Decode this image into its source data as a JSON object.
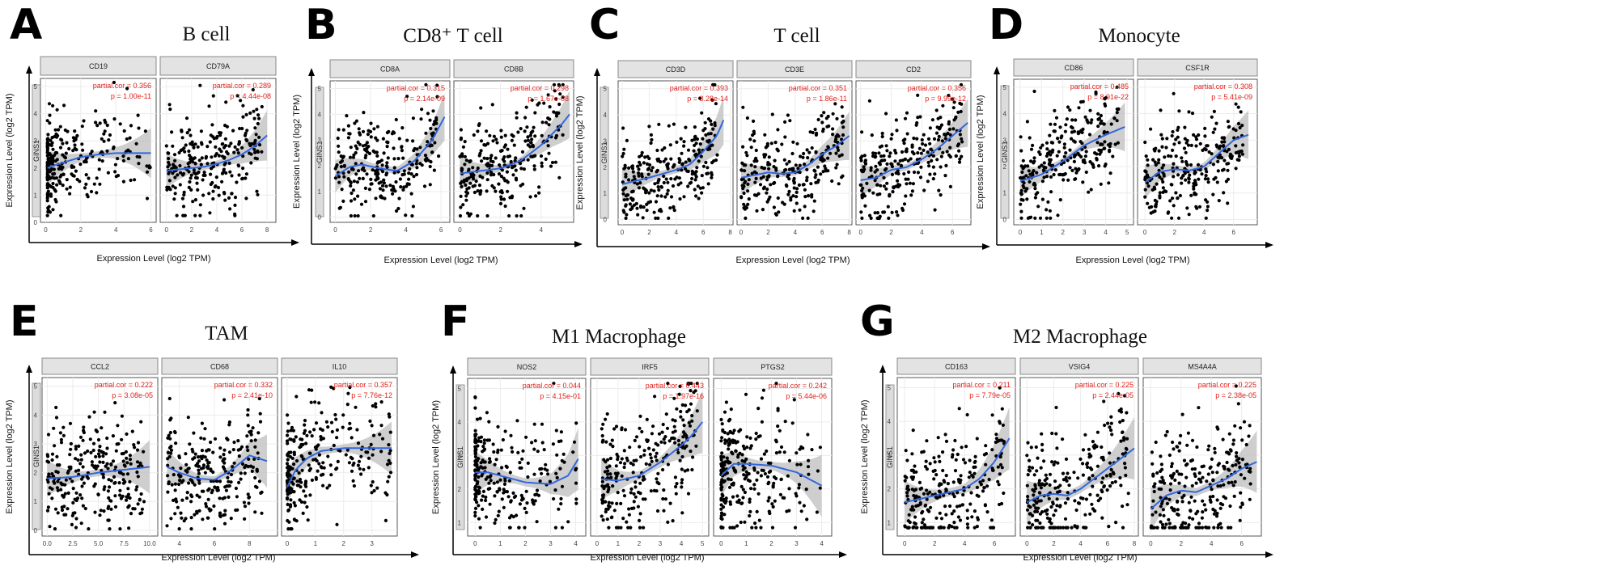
{
  "y_gene": "GINS1",
  "axis_label": "Expression Level (log2 TPM)",
  "colors": {
    "points": "#000000",
    "fit": "#3366dd",
    "band": "#bdbdbd",
    "stats": "#e0211b"
  },
  "chart_data": [
    {
      "type": "scatter",
      "label": "A",
      "title": "B cell",
      "y_ticks": [
        0,
        1,
        2,
        3,
        4,
        5
      ],
      "ylim": [
        0,
        5.3
      ],
      "panels": [
        {
          "gene": "CD19",
          "partial_cor": "partial.cor = 0.356",
          "p": "p = 1.00e-11",
          "xlim": [
            -0.3,
            6.3
          ],
          "x_ticks": [
            0,
            2,
            4,
            6
          ],
          "fit": [
            [
              0.1,
              2.0
            ],
            [
              0.5,
              2.1
            ],
            [
              1,
              2.2
            ],
            [
              2,
              2.4
            ],
            [
              3,
              2.5
            ],
            [
              4,
              2.55
            ],
            [
              5,
              2.55
            ],
            [
              6,
              2.55
            ]
          ]
        },
        {
          "gene": "CD79A",
          "partial_cor": "partial.cor = 0.289",
          "p": "p = 4.44e-08",
          "xlim": [
            -0.5,
            8.7
          ],
          "x_ticks": [
            0,
            2,
            4,
            6,
            8
          ],
          "fit": [
            [
              0,
              1.9
            ],
            [
              1,
              1.95
            ],
            [
              2,
              2.0
            ],
            [
              3,
              2.05
            ],
            [
              4,
              2.15
            ],
            [
              5,
              2.3
            ],
            [
              6,
              2.5
            ],
            [
              7,
              2.8
            ],
            [
              8,
              3.2
            ]
          ]
        }
      ]
    },
    {
      "type": "scatter",
      "label": "B",
      "title": "CD8⁺ T cell",
      "y_ticks": [
        0,
        1,
        2,
        3,
        4,
        5
      ],
      "ylim": [
        -0.2,
        5.3
      ],
      "panels": [
        {
          "gene": "CD8A",
          "partial_cor": "partial.cor = 0.315",
          "p": "p = 2.14e-09",
          "xlim": [
            -0.3,
            6.5
          ],
          "x_ticks": [
            0,
            2,
            4,
            6
          ],
          "fit": [
            [
              0,
              1.6
            ],
            [
              0.8,
              1.95
            ],
            [
              1.5,
              2.05
            ],
            [
              2.5,
              1.9
            ],
            [
              3.5,
              1.8
            ],
            [
              4.5,
              2.2
            ],
            [
              5.5,
              3.0
            ],
            [
              6.2,
              3.9
            ]
          ]
        },
        {
          "gene": "CD8B",
          "partial_cor": "partial.cor = 0.298",
          "p": "p = 1.67e-08",
          "xlim": [
            -0.3,
            5.6
          ],
          "x_ticks": [
            0,
            2,
            4
          ],
          "fit": [
            [
              0,
              1.7
            ],
            [
              1,
              1.8
            ],
            [
              2,
              1.9
            ],
            [
              3,
              2.2
            ],
            [
              4,
              2.8
            ],
            [
              5,
              3.6
            ],
            [
              5.4,
              4.0
            ]
          ]
        }
      ]
    },
    {
      "type": "scatter",
      "label": "C",
      "title": "T cell",
      "y_ticks": [
        0,
        1,
        2,
        3,
        4,
        5
      ],
      "ylim": [
        -0.2,
        5.3
      ],
      "panels": [
        {
          "gene": "CD3D",
          "partial_cor": "partial.cor = 0.393",
          "p": "p = 3.28e-14",
          "xlim": [
            -0.3,
            8.2
          ],
          "x_ticks": [
            0,
            2,
            4,
            6,
            8
          ],
          "fit": [
            [
              0,
              1.35
            ],
            [
              2,
              1.6
            ],
            [
              4,
              1.9
            ],
            [
              5,
              2.1
            ],
            [
              6,
              2.6
            ],
            [
              7,
              3.2
            ],
            [
              7.5,
              3.8
            ]
          ]
        },
        {
          "gene": "CD3E",
          "partial_cor": "partial.cor = 0.351",
          "p": "p = 1.86e-11",
          "xlim": [
            -0.3,
            8.2
          ],
          "x_ticks": [
            0,
            2,
            4,
            6,
            8
          ],
          "fit": [
            [
              0,
              1.6
            ],
            [
              1,
              1.7
            ],
            [
              2,
              1.8
            ],
            [
              3,
              1.75
            ],
            [
              4,
              1.8
            ],
            [
              5,
              2.1
            ],
            [
              6,
              2.5
            ],
            [
              7,
              2.8
            ],
            [
              8,
              3.2
            ]
          ]
        },
        {
          "gene": "CD2",
          "partial_cor": "partial.cor = 0.356",
          "p": "p = 9.99e-12",
          "xlim": [
            -0.3,
            7.2
          ],
          "x_ticks": [
            0,
            2,
            4,
            6
          ],
          "fit": [
            [
              0,
              1.5
            ],
            [
              1,
              1.6
            ],
            [
              2,
              1.9
            ],
            [
              3,
              2.0
            ],
            [
              4,
              2.3
            ],
            [
              5,
              2.7
            ],
            [
              6,
              3.2
            ],
            [
              7,
              3.7
            ]
          ]
        }
      ]
    },
    {
      "type": "scatter",
      "label": "D",
      "title": "Monocyte",
      "y_ticks": [
        0,
        1,
        2,
        3,
        4,
        5
      ],
      "ylim": [
        -0.2,
        5.3
      ],
      "panels": [
        {
          "gene": "CD86",
          "partial_cor": "partial.cor = 0.485",
          "p": "p = 8.91e-22",
          "xlim": [
            -0.3,
            5.3
          ],
          "x_ticks": [
            0,
            1,
            2,
            3,
            4,
            5
          ],
          "fit": [
            [
              0,
              1.45
            ],
            [
              1,
              1.7
            ],
            [
              2,
              2.2
            ],
            [
              3,
              2.8
            ],
            [
              4,
              3.2
            ],
            [
              4.9,
              3.5
            ]
          ]
        },
        {
          "gene": "CSF1R",
          "partial_cor": "partial.cor = 0.308",
          "p": "p = 5.41e-09",
          "xlim": [
            -0.5,
            7.6
          ],
          "x_ticks": [
            0,
            2,
            4,
            6
          ],
          "fit": [
            [
              0,
              1.4
            ],
            [
              1,
              1.8
            ],
            [
              2,
              1.9
            ],
            [
              3,
              1.85
            ],
            [
              4,
              2.0
            ],
            [
              5,
              2.5
            ],
            [
              6,
              3.0
            ],
            [
              7,
              3.2
            ]
          ]
        }
      ]
    },
    {
      "type": "scatter",
      "label": "E",
      "title": "TAM",
      "y_ticks": [
        0,
        1,
        2,
        3,
        4,
        5
      ],
      "ylim": [
        -0.2,
        5.3
      ],
      "panels": [
        {
          "gene": "CCL2",
          "partial_cor": "partial.cor = 0.222",
          "p": "p = 3.08e-05",
          "xlim": [
            -0.5,
            10.8
          ],
          "x_ticks": [
            0,
            2.5,
            5,
            7.5,
            10
          ],
          "x_tick_labels": [
            "0.0",
            "2.5",
            "5.0",
            "7.5",
            "10.0"
          ],
          "fit": [
            [
              0,
              1.8
            ],
            [
              2.5,
              1.85
            ],
            [
              5,
              2.0
            ],
            [
              7.5,
              2.1
            ],
            [
              10,
              2.2
            ]
          ]
        },
        {
          "gene": "CD68",
          "partial_cor": "partial.cor = 0.332",
          "p": "p = 2.41e-10",
          "xlim": [
            3.0,
            9.6
          ],
          "x_ticks": [
            4,
            6,
            8
          ],
          "fit": [
            [
              3.3,
              2.2
            ],
            [
              4,
              2.0
            ],
            [
              5,
              1.8
            ],
            [
              6,
              1.75
            ],
            [
              7,
              2.1
            ],
            [
              8,
              2.6
            ],
            [
              9,
              2.4
            ]
          ]
        },
        {
          "gene": "IL10",
          "partial_cor": "partial.cor = 0.357",
          "p": "p = 7.76e-12",
          "xlim": [
            -0.2,
            3.9
          ],
          "x_ticks": [
            0,
            1,
            2,
            3
          ],
          "fit": [
            [
              0,
              1.5
            ],
            [
              0.3,
              2.1
            ],
            [
              0.7,
              2.5
            ],
            [
              1.2,
              2.75
            ],
            [
              2,
              2.85
            ],
            [
              3,
              2.85
            ],
            [
              3.7,
              2.85
            ]
          ]
        }
      ]
    },
    {
      "type": "scatter",
      "label": "F",
      "title": "M1 Macrophage",
      "y_ticks": [
        1,
        2,
        3,
        4,
        5
      ],
      "ylim": [
        0.6,
        5.3
      ],
      "panels": [
        {
          "gene": "NOS2",
          "partial_cor": "partial.cor = 0.044",
          "p": "p = 4.15e-01",
          "xlim": [
            -0.3,
            4.4
          ],
          "x_ticks": [
            0,
            1,
            2,
            3,
            4
          ],
          "fit": [
            [
              0,
              2.5
            ],
            [
              0.5,
              2.5
            ],
            [
              1,
              2.4
            ],
            [
              2,
              2.2
            ],
            [
              3,
              2.15
            ],
            [
              3.7,
              2.4
            ],
            [
              4.1,
              2.9
            ]
          ]
        },
        {
          "gene": "IRF5",
          "partial_cor": "partial.cor = 0.443",
          "p": "p = 1.97e-16",
          "xlim": [
            -0.3,
            5.3
          ],
          "x_ticks": [
            0,
            1,
            2,
            3,
            4,
            5
          ],
          "fit": [
            [
              0.2,
              2.3
            ],
            [
              1,
              2.25
            ],
            [
              2,
              2.4
            ],
            [
              3,
              2.8
            ],
            [
              4,
              3.3
            ],
            [
              4.5,
              3.6
            ],
            [
              5,
              4.0
            ]
          ]
        },
        {
          "gene": "PTGS2",
          "partial_cor": "partial.cor = 0.242",
          "p": "p = 5.44e-06",
          "xlim": [
            -0.3,
            4.4
          ],
          "x_ticks": [
            0,
            1,
            2,
            3,
            4
          ],
          "fit": [
            [
              0,
              2.4
            ],
            [
              0.5,
              2.75
            ],
            [
              1,
              2.75
            ],
            [
              2,
              2.7
            ],
            [
              3,
              2.5
            ],
            [
              4,
              2.1
            ]
          ]
        }
      ]
    },
    {
      "type": "scatter",
      "label": "G",
      "title": "M2 Macrophage",
      "y_ticks": [
        1,
        2,
        3,
        4,
        5
      ],
      "ylim": [
        0.6,
        5.3
      ],
      "panels": [
        {
          "gene": "CD163",
          "partial_cor": "partial.cor = 0.211",
          "p": "p = 7.79e-05",
          "xlim": [
            -0.5,
            7.4
          ],
          "x_ticks": [
            0,
            2,
            4,
            6
          ],
          "fit": [
            [
              0,
              1.6
            ],
            [
              2,
              1.8
            ],
            [
              4,
              2.0
            ],
            [
              5,
              2.3
            ],
            [
              6,
              2.8
            ],
            [
              7,
              3.5
            ]
          ]
        },
        {
          "gene": "VSIG4",
          "partial_cor": "partial.cor = 0.225",
          "p": "p = 2.44e-05",
          "xlim": [
            -0.5,
            8.3
          ],
          "x_ticks": [
            0,
            2,
            4,
            6,
            8
          ],
          "fit": [
            [
              0,
              1.6
            ],
            [
              1,
              1.8
            ],
            [
              2,
              1.85
            ],
            [
              3,
              1.8
            ],
            [
              4,
              2.0
            ],
            [
              5,
              2.3
            ],
            [
              6,
              2.6
            ],
            [
              7,
              2.9
            ],
            [
              8,
              3.2
            ]
          ]
        },
        {
          "gene": "MS4A4A",
          "partial_cor": "partial.cor = 0.225",
          "p": "p = 2.38e-05",
          "xlim": [
            -0.5,
            7.3
          ],
          "x_ticks": [
            0,
            2,
            4,
            6
          ],
          "fit": [
            [
              0,
              1.4
            ],
            [
              1,
              1.8
            ],
            [
              2,
              1.95
            ],
            [
              3,
              1.9
            ],
            [
              4,
              2.1
            ],
            [
              5,
              2.3
            ],
            [
              6,
              2.6
            ],
            [
              7,
              2.8
            ]
          ]
        }
      ]
    }
  ]
}
